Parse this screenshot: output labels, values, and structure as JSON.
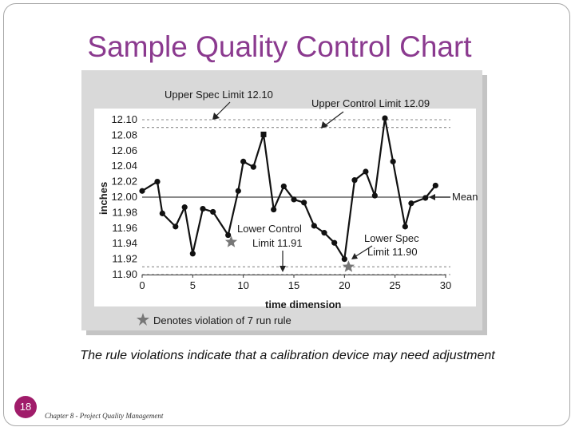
{
  "slide": {
    "title": "Sample Quality Control Chart",
    "caption": "The rule violations indicate that a calibration device may need adjustment",
    "page_number": "18",
    "footer": "Chapter 8 - Project Quality Management"
  },
  "colors": {
    "title": "#8b3a8f",
    "page_badge": "#a01c6a",
    "panel": "#d9d9d9",
    "plot": "#ffffff",
    "series": "#111111",
    "star": "#777777"
  },
  "chart_data": {
    "type": "line",
    "xlabel": "time dimension",
    "ylabel": "inches",
    "xlim": [
      0,
      30
    ],
    "ylim": [
      11.9,
      12.1
    ],
    "x_ticks": [
      0,
      5,
      10,
      15,
      20,
      25,
      30
    ],
    "y_ticks": [
      "12.10",
      "12.08",
      "12.06",
      "12.04",
      "12.02",
      "12.00",
      "11.98",
      "11.96",
      "11.94",
      "11.92",
      "11.90"
    ],
    "grid": false,
    "series": [
      {
        "x": [
          0,
          1.5,
          2,
          3.3,
          4.2,
          5,
          6,
          7,
          8.5,
          9.5,
          10,
          11,
          12,
          13,
          14,
          15,
          16,
          17,
          18,
          19,
          20,
          21,
          22.1,
          23,
          24,
          24.8,
          26,
          26.6,
          28,
          29
        ],
        "y": [
          12.008,
          12.02,
          11.979,
          11.962,
          11.987,
          11.927,
          11.985,
          11.981,
          11.951,
          12.008,
          12.046,
          12.039,
          12.081,
          11.984,
          12.014,
          11.997,
          11.993,
          11.963,
          11.954,
          11.941,
          11.92,
          12.022,
          12.033,
          12.002,
          12.102,
          12.046,
          11.962,
          11.992,
          11.999,
          12.015
        ]
      }
    ],
    "reference_lines": [
      {
        "label": "Upper Spec Limit 12.10",
        "value": 12.1,
        "style": "dashed"
      },
      {
        "label": "Upper Control Limit 12.09",
        "value": 12.09,
        "style": "dashed"
      },
      {
        "label": "Mean",
        "value": 12.0,
        "style": "solid"
      },
      {
        "label": "Lower Control Limit 11.91",
        "value": 11.91,
        "style": "dashed"
      },
      {
        "label": "Lower Spec Limit 11.90",
        "value": 11.9,
        "style": "dashed"
      }
    ],
    "violation_markers": [
      {
        "x": 8.8,
        "y": 11.942
      },
      {
        "x": 20.4,
        "y": 11.91
      }
    ],
    "annotations": {
      "upper_spec_label": "Upper Spec Limit 12.10",
      "upper_control_label": "Upper Control Limit 12.09",
      "mean_label": "Mean",
      "lower_control_label_1": "Lower Control",
      "lower_control_label_2": "Limit 11.91",
      "lower_spec_label_1": "Lower Spec",
      "lower_spec_label_2": "Limit 11.90",
      "legend_note": "Denotes violation of 7 run rule"
    }
  }
}
